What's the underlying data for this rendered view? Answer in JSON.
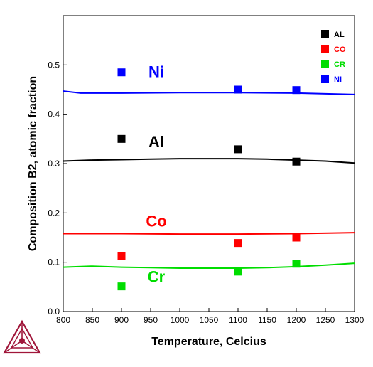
{
  "chart_data": {
    "type": "line",
    "xlabel": "Temperature, Celcius",
    "ylabel": "Composition B2, atomic fraction",
    "xlim": [
      800,
      1300
    ],
    "ylim": [
      0,
      0.6
    ],
    "xticks": [
      "800",
      "850",
      "900",
      "950",
      "1000",
      "1050",
      "1100",
      "1150",
      "1200",
      "1250",
      "1300"
    ],
    "yticks": [
      "0.0",
      "0.1",
      "0.2",
      "0.3",
      "0.4",
      "0.5"
    ],
    "legend_position": "top-right",
    "legend": [
      {
        "label": "AL",
        "color": "#000000",
        "text_color": "#000000"
      },
      {
        "label": "CO",
        "color": "#ff0000",
        "text_color": "#ff0000"
      },
      {
        "label": "CR",
        "color": "#00dd00",
        "text_color": "#00dd00"
      },
      {
        "label": "NI",
        "color": "#0000ff",
        "text_color": "#0000ff"
      }
    ],
    "series": [
      {
        "name": "Ni",
        "color": "#0000ff",
        "label_color": "#0000ff",
        "label_at": [
          950,
          0.475
        ],
        "curve": [
          [
            800,
            0.447
          ],
          [
            830,
            0.443
          ],
          [
            900,
            0.443
          ],
          [
            1000,
            0.444
          ],
          [
            1100,
            0.444
          ],
          [
            1200,
            0.443
          ],
          [
            1300,
            0.44
          ]
        ],
        "points": [
          [
            900,
            0.485
          ],
          [
            1100,
            0.45
          ],
          [
            1200,
            0.449
          ]
        ]
      },
      {
        "name": "Al",
        "color": "#000000",
        "label_color": "#000000",
        "label_at": [
          950,
          0.333
        ],
        "curve": [
          [
            800,
            0.305
          ],
          [
            850,
            0.307
          ],
          [
            900,
            0.308
          ],
          [
            950,
            0.309
          ],
          [
            1000,
            0.31
          ],
          [
            1050,
            0.31
          ],
          [
            1100,
            0.31
          ],
          [
            1150,
            0.309
          ],
          [
            1200,
            0.307
          ],
          [
            1250,
            0.305
          ],
          [
            1300,
            0.301
          ]
        ],
        "points": [
          [
            900,
            0.35
          ],
          [
            1100,
            0.329
          ],
          [
            1200,
            0.304
          ]
        ]
      },
      {
        "name": "Co",
        "color": "#ff0000",
        "label_color": "#ff0000",
        "label_at": [
          950,
          0.172
        ],
        "curve": [
          [
            800,
            0.158
          ],
          [
            900,
            0.158
          ],
          [
            1000,
            0.157
          ],
          [
            1100,
            0.157
          ],
          [
            1200,
            0.158
          ],
          [
            1300,
            0.16
          ]
        ],
        "points": [
          [
            900,
            0.112
          ],
          [
            1100,
            0.139
          ],
          [
            1200,
            0.15
          ]
        ]
      },
      {
        "name": "Cr",
        "color": "#00dd00",
        "label_color": "#00dd00",
        "label_at": [
          950,
          0.06
        ],
        "curve": [
          [
            800,
            0.09
          ],
          [
            850,
            0.092
          ],
          [
            900,
            0.09
          ],
          [
            950,
            0.089
          ],
          [
            1000,
            0.088
          ],
          [
            1050,
            0.088
          ],
          [
            1100,
            0.088
          ],
          [
            1150,
            0.089
          ],
          [
            1200,
            0.091
          ],
          [
            1250,
            0.094
          ],
          [
            1300,
            0.098
          ]
        ],
        "points": [
          [
            900,
            0.051
          ],
          [
            1100,
            0.081
          ],
          [
            1200,
            0.097
          ]
        ]
      }
    ]
  }
}
